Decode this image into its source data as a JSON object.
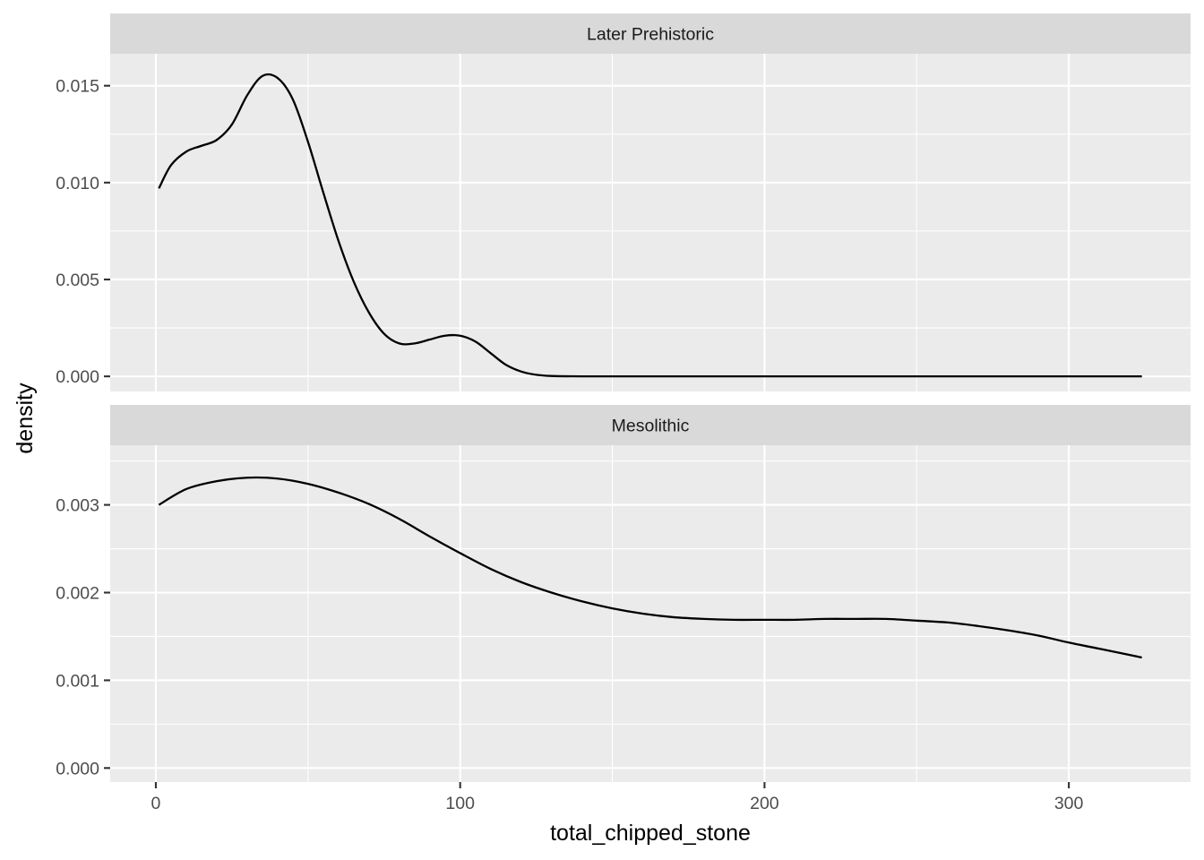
{
  "chart_data": {
    "type": "line",
    "geom": "density",
    "xlabel": "total_chipped_stone",
    "ylabel": "density",
    "x_ticks": [
      0,
      100,
      200,
      300
    ],
    "xlim": [
      -15,
      340
    ],
    "grid": true,
    "facets": [
      {
        "label": "Later Prehistoric",
        "ylim": [
          -0.00078,
          0.01665
        ],
        "y_ticks": [
          "0.000",
          "0.005",
          "0.010",
          "0.015"
        ],
        "y_tick_values": [
          0,
          0.005,
          0.01,
          0.015
        ],
        "points": [
          [
            1,
            0.0097
          ],
          [
            5,
            0.0109
          ],
          [
            10,
            0.0116
          ],
          [
            15,
            0.0119
          ],
          [
            20,
            0.0122
          ],
          [
            25,
            0.013
          ],
          [
            30,
            0.0145
          ],
          [
            35,
            0.0155
          ],
          [
            40,
            0.0154
          ],
          [
            45,
            0.0143
          ],
          [
            50,
            0.0121
          ],
          [
            55,
            0.0095
          ],
          [
            60,
            0.007
          ],
          [
            65,
            0.0049
          ],
          [
            70,
            0.0033
          ],
          [
            75,
            0.0022
          ],
          [
            80,
            0.0017
          ],
          [
            85,
            0.0017
          ],
          [
            90,
            0.0019
          ],
          [
            95,
            0.0021
          ],
          [
            100,
            0.0021
          ],
          [
            105,
            0.0018
          ],
          [
            110,
            0.0012
          ],
          [
            115,
            0.0006
          ],
          [
            120,
            0.00025
          ],
          [
            125,
            8e-05
          ],
          [
            130,
            2e-05
          ],
          [
            140,
            0.0
          ],
          [
            160,
            0.0
          ],
          [
            200,
            0.0
          ],
          [
            250,
            0.0
          ],
          [
            300,
            0.0
          ],
          [
            324,
            0.0
          ]
        ]
      },
      {
        "label": "Mesolithic",
        "ylim": [
          -0.00016,
          0.00368
        ],
        "y_ticks": [
          "0.000",
          "0.001",
          "0.002",
          "0.003"
        ],
        "y_tick_values": [
          0,
          0.001,
          0.002,
          0.003
        ],
        "points": [
          [
            1,
            0.003
          ],
          [
            10,
            0.00318
          ],
          [
            20,
            0.00327
          ],
          [
            30,
            0.00331
          ],
          [
            40,
            0.0033
          ],
          [
            50,
            0.00324
          ],
          [
            60,
            0.00314
          ],
          [
            70,
            0.00301
          ],
          [
            80,
            0.00284
          ],
          [
            90,
            0.00264
          ],
          [
            100,
            0.00245
          ],
          [
            110,
            0.00227
          ],
          [
            120,
            0.00212
          ],
          [
            130,
            0.002
          ],
          [
            140,
            0.0019
          ],
          [
            150,
            0.00182
          ],
          [
            160,
            0.00176
          ],
          [
            170,
            0.00172
          ],
          [
            180,
            0.0017
          ],
          [
            190,
            0.00169
          ],
          [
            200,
            0.00169
          ],
          [
            210,
            0.00169
          ],
          [
            220,
            0.0017
          ],
          [
            230,
            0.0017
          ],
          [
            240,
            0.0017
          ],
          [
            250,
            0.00168
          ],
          [
            260,
            0.00166
          ],
          [
            270,
            0.00162
          ],
          [
            280,
            0.00157
          ],
          [
            290,
            0.00151
          ],
          [
            300,
            0.00143
          ],
          [
            310,
            0.00136
          ],
          [
            324,
            0.00126
          ]
        ]
      }
    ]
  }
}
